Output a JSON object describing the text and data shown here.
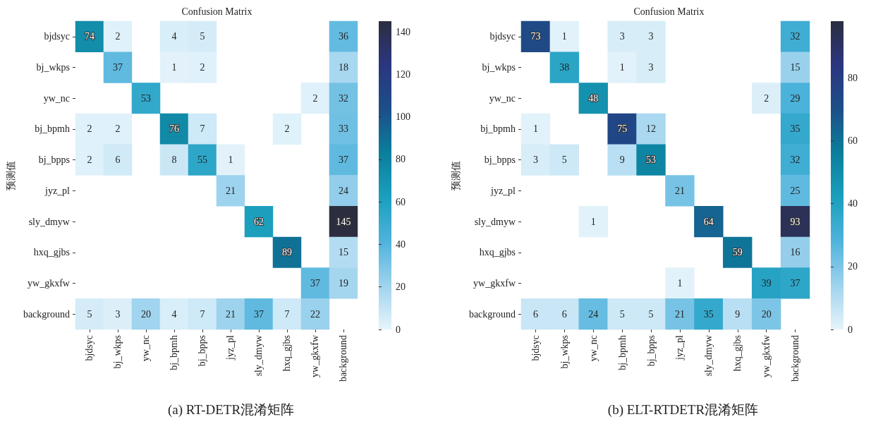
{
  "chart_data": [
    {
      "type": "heatmap",
      "title": "Confusion Matrix",
      "ylabel": "预测值",
      "annotations": [
        "(a) RT-DETR混淆矩阵"
      ],
      "categories": [
        "bjdsyc",
        "bj_wkps",
        "yw_nc",
        "bj_bpmh",
        "bj_bpps",
        "jyz_pl",
        "sly_dmyw",
        "hxq_gjbs",
        "yw_gkxfw",
        "background"
      ],
      "y_categories": [
        "bjdsyc",
        "bj_wkps",
        "yw_nc",
        "bj_bpmh",
        "bj_bpps",
        "jyz_pl",
        "sly_dmyw",
        "hxq_gjbs",
        "yw_gkxfw",
        "background"
      ],
      "cells": [
        [
          74,
          2,
          null,
          4,
          5,
          null,
          null,
          null,
          null,
          36
        ],
        [
          null,
          37,
          null,
          1,
          2,
          null,
          null,
          null,
          null,
          18
        ],
        [
          null,
          null,
          53,
          null,
          null,
          null,
          null,
          null,
          2,
          32
        ],
        [
          2,
          2,
          null,
          76,
          7,
          null,
          null,
          2,
          null,
          33
        ],
        [
          2,
          6,
          null,
          8,
          55,
          1,
          null,
          null,
          null,
          37
        ],
        [
          null,
          null,
          null,
          null,
          null,
          21,
          null,
          null,
          null,
          24
        ],
        [
          null,
          null,
          null,
          null,
          null,
          null,
          62,
          null,
          null,
          145
        ],
        [
          null,
          null,
          null,
          null,
          null,
          null,
          null,
          89,
          null,
          15
        ],
        [
          null,
          null,
          null,
          null,
          null,
          null,
          null,
          null,
          37,
          19
        ],
        [
          5,
          3,
          20,
          4,
          7,
          21,
          37,
          7,
          22,
          null
        ]
      ],
      "clim": [
        0,
        145
      ],
      "cticks": [
        0,
        20,
        40,
        60,
        80,
        100,
        120,
        140
      ],
      "data_labels": true
    },
    {
      "type": "heatmap",
      "title": "Confusion Matrix",
      "ylabel": "预测值",
      "annotations": [
        "(b) ELT-RTDETR混淆矩阵"
      ],
      "categories": [
        "bjdsyc",
        "bj_wkps",
        "yw_nc",
        "bj_bpmh",
        "bj_bpps",
        "jyz_pl",
        "sly_dmyw",
        "hxq_gjbs",
        "yw_gkxfw",
        "background"
      ],
      "y_categories": [
        "bjdsyc",
        "bj_wkps",
        "yw_nc",
        "bj_bpmh",
        "bj_bpps",
        "jyz_pl",
        "sly_dmyw",
        "hxq_gjbs",
        "yw_gkxfw",
        "background"
      ],
      "cells": [
        [
          73,
          1,
          null,
          3,
          3,
          null,
          null,
          null,
          null,
          32
        ],
        [
          null,
          38,
          null,
          1,
          3,
          null,
          null,
          null,
          null,
          15
        ],
        [
          null,
          null,
          48,
          null,
          null,
          null,
          null,
          null,
          2,
          29
        ],
        [
          1,
          null,
          null,
          75,
          12,
          null,
          null,
          null,
          null,
          35
        ],
        [
          3,
          5,
          null,
          9,
          53,
          null,
          null,
          null,
          null,
          32
        ],
        [
          null,
          null,
          null,
          null,
          null,
          21,
          null,
          null,
          null,
          25
        ],
        [
          null,
          null,
          1,
          null,
          null,
          null,
          64,
          null,
          null,
          93
        ],
        [
          null,
          null,
          null,
          null,
          null,
          null,
          null,
          59,
          null,
          16
        ],
        [
          null,
          null,
          null,
          null,
          null,
          1,
          null,
          null,
          39,
          37
        ],
        [
          6,
          6,
          24,
          5,
          5,
          21,
          35,
          9,
          20,
          null
        ]
      ],
      "clim": [
        0,
        98
      ],
      "cticks": [
        0,
        20,
        40,
        60,
        80
      ],
      "data_labels": true
    }
  ]
}
